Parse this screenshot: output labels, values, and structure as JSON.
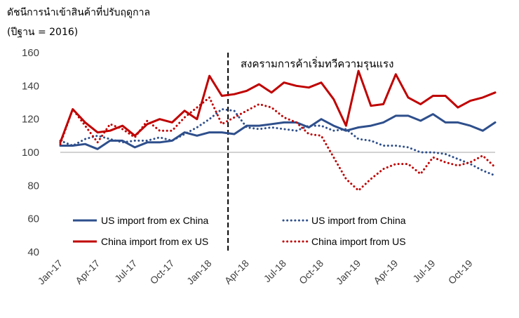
{
  "chart_data": {
    "type": "line",
    "title": "ดัชนีการนำเข้าสินค้าที่ปรับฤดูกาล",
    "subtitle": "(ปีฐาน = 2016)",
    "annotation": "สงครามการค้าเริ่มทวีความรุนแรง",
    "ylim": [
      40,
      160
    ],
    "yticks": [
      40,
      60,
      80,
      100,
      120,
      140,
      160
    ],
    "reference_line": 100,
    "event_index": 13.5,
    "categories": [
      "Jan-17",
      "Feb-17",
      "Mar-17",
      "Apr-17",
      "May-17",
      "Jun-17",
      "Jul-17",
      "Aug-17",
      "Sep-17",
      "Oct-17",
      "Nov-17",
      "Dec-17",
      "Jan-18",
      "Feb-18",
      "Mar-18",
      "Apr-18",
      "May-18",
      "Jun-18",
      "Jul-18",
      "Aug-18",
      "Sep-18",
      "Oct-18",
      "Nov-18",
      "Dec-18",
      "Jan-19",
      "Feb-19",
      "Mar-19",
      "Apr-19",
      "May-19",
      "Jun-19",
      "Jul-19",
      "Aug-19",
      "Sep-19",
      "Oct-19",
      "Nov-19",
      "Dec-19"
    ],
    "xtick_labels": [
      "Jan-17",
      "Apr-17",
      "Jul-17",
      "Oct-17",
      "Jan-18",
      "Apr-18",
      "Jul-18",
      "Oct-18",
      "Jan-19",
      "Apr-19",
      "Jul-19",
      "Oct-19"
    ],
    "xtick_indices": [
      0,
      3,
      6,
      9,
      12,
      15,
      18,
      21,
      24,
      27,
      30,
      33
    ],
    "series": [
      {
        "name": "US import from ex China",
        "color": "#2e4f8c",
        "style": "solid",
        "values": [
          104,
          104,
          105,
          102,
          107,
          107,
          103,
          106,
          106,
          107,
          112,
          110,
          112,
          112,
          111,
          116,
          116,
          117,
          118,
          118,
          115,
          120,
          116,
          113,
          115,
          116,
          118,
          122,
          122,
          119,
          123,
          118,
          118,
          116,
          113,
          118
        ]
      },
      {
        "name": "US import from China",
        "color": "#2e4f8c",
        "style": "dotted",
        "values": [
          107,
          104,
          108,
          110,
          108,
          106,
          107,
          107,
          109,
          107,
          111,
          115,
          120,
          126,
          125,
          115,
          114,
          115,
          114,
          113,
          116,
          116,
          113,
          114,
          108,
          107,
          104,
          104,
          103,
          100,
          100,
          99,
          96,
          93,
          89,
          86
        ]
      },
      {
        "name": "China import from ex US",
        "color": "#c00000",
        "style": "solid",
        "values": [
          106,
          126,
          118,
          112,
          113,
          116,
          110,
          117,
          120,
          118,
          125,
          120,
          146,
          134,
          135,
          137,
          141,
          136,
          142,
          140,
          139,
          142,
          132,
          116,
          149,
          128,
          129,
          147,
          133,
          129,
          134,
          134,
          127,
          131,
          133,
          136
        ]
      },
      {
        "name": "China import from US",
        "color": "#c00000",
        "style": "dotted",
        "values": [
          105,
          126,
          116,
          106,
          117,
          114,
          109,
          119,
          113,
          113,
          121,
          127,
          133,
          117,
          121,
          125,
          129,
          127,
          121,
          118,
          111,
          110,
          97,
          84,
          77,
          84,
          90,
          93,
          93,
          87,
          97,
          94,
          92,
          94,
          98,
          91
        ]
      }
    ]
  }
}
